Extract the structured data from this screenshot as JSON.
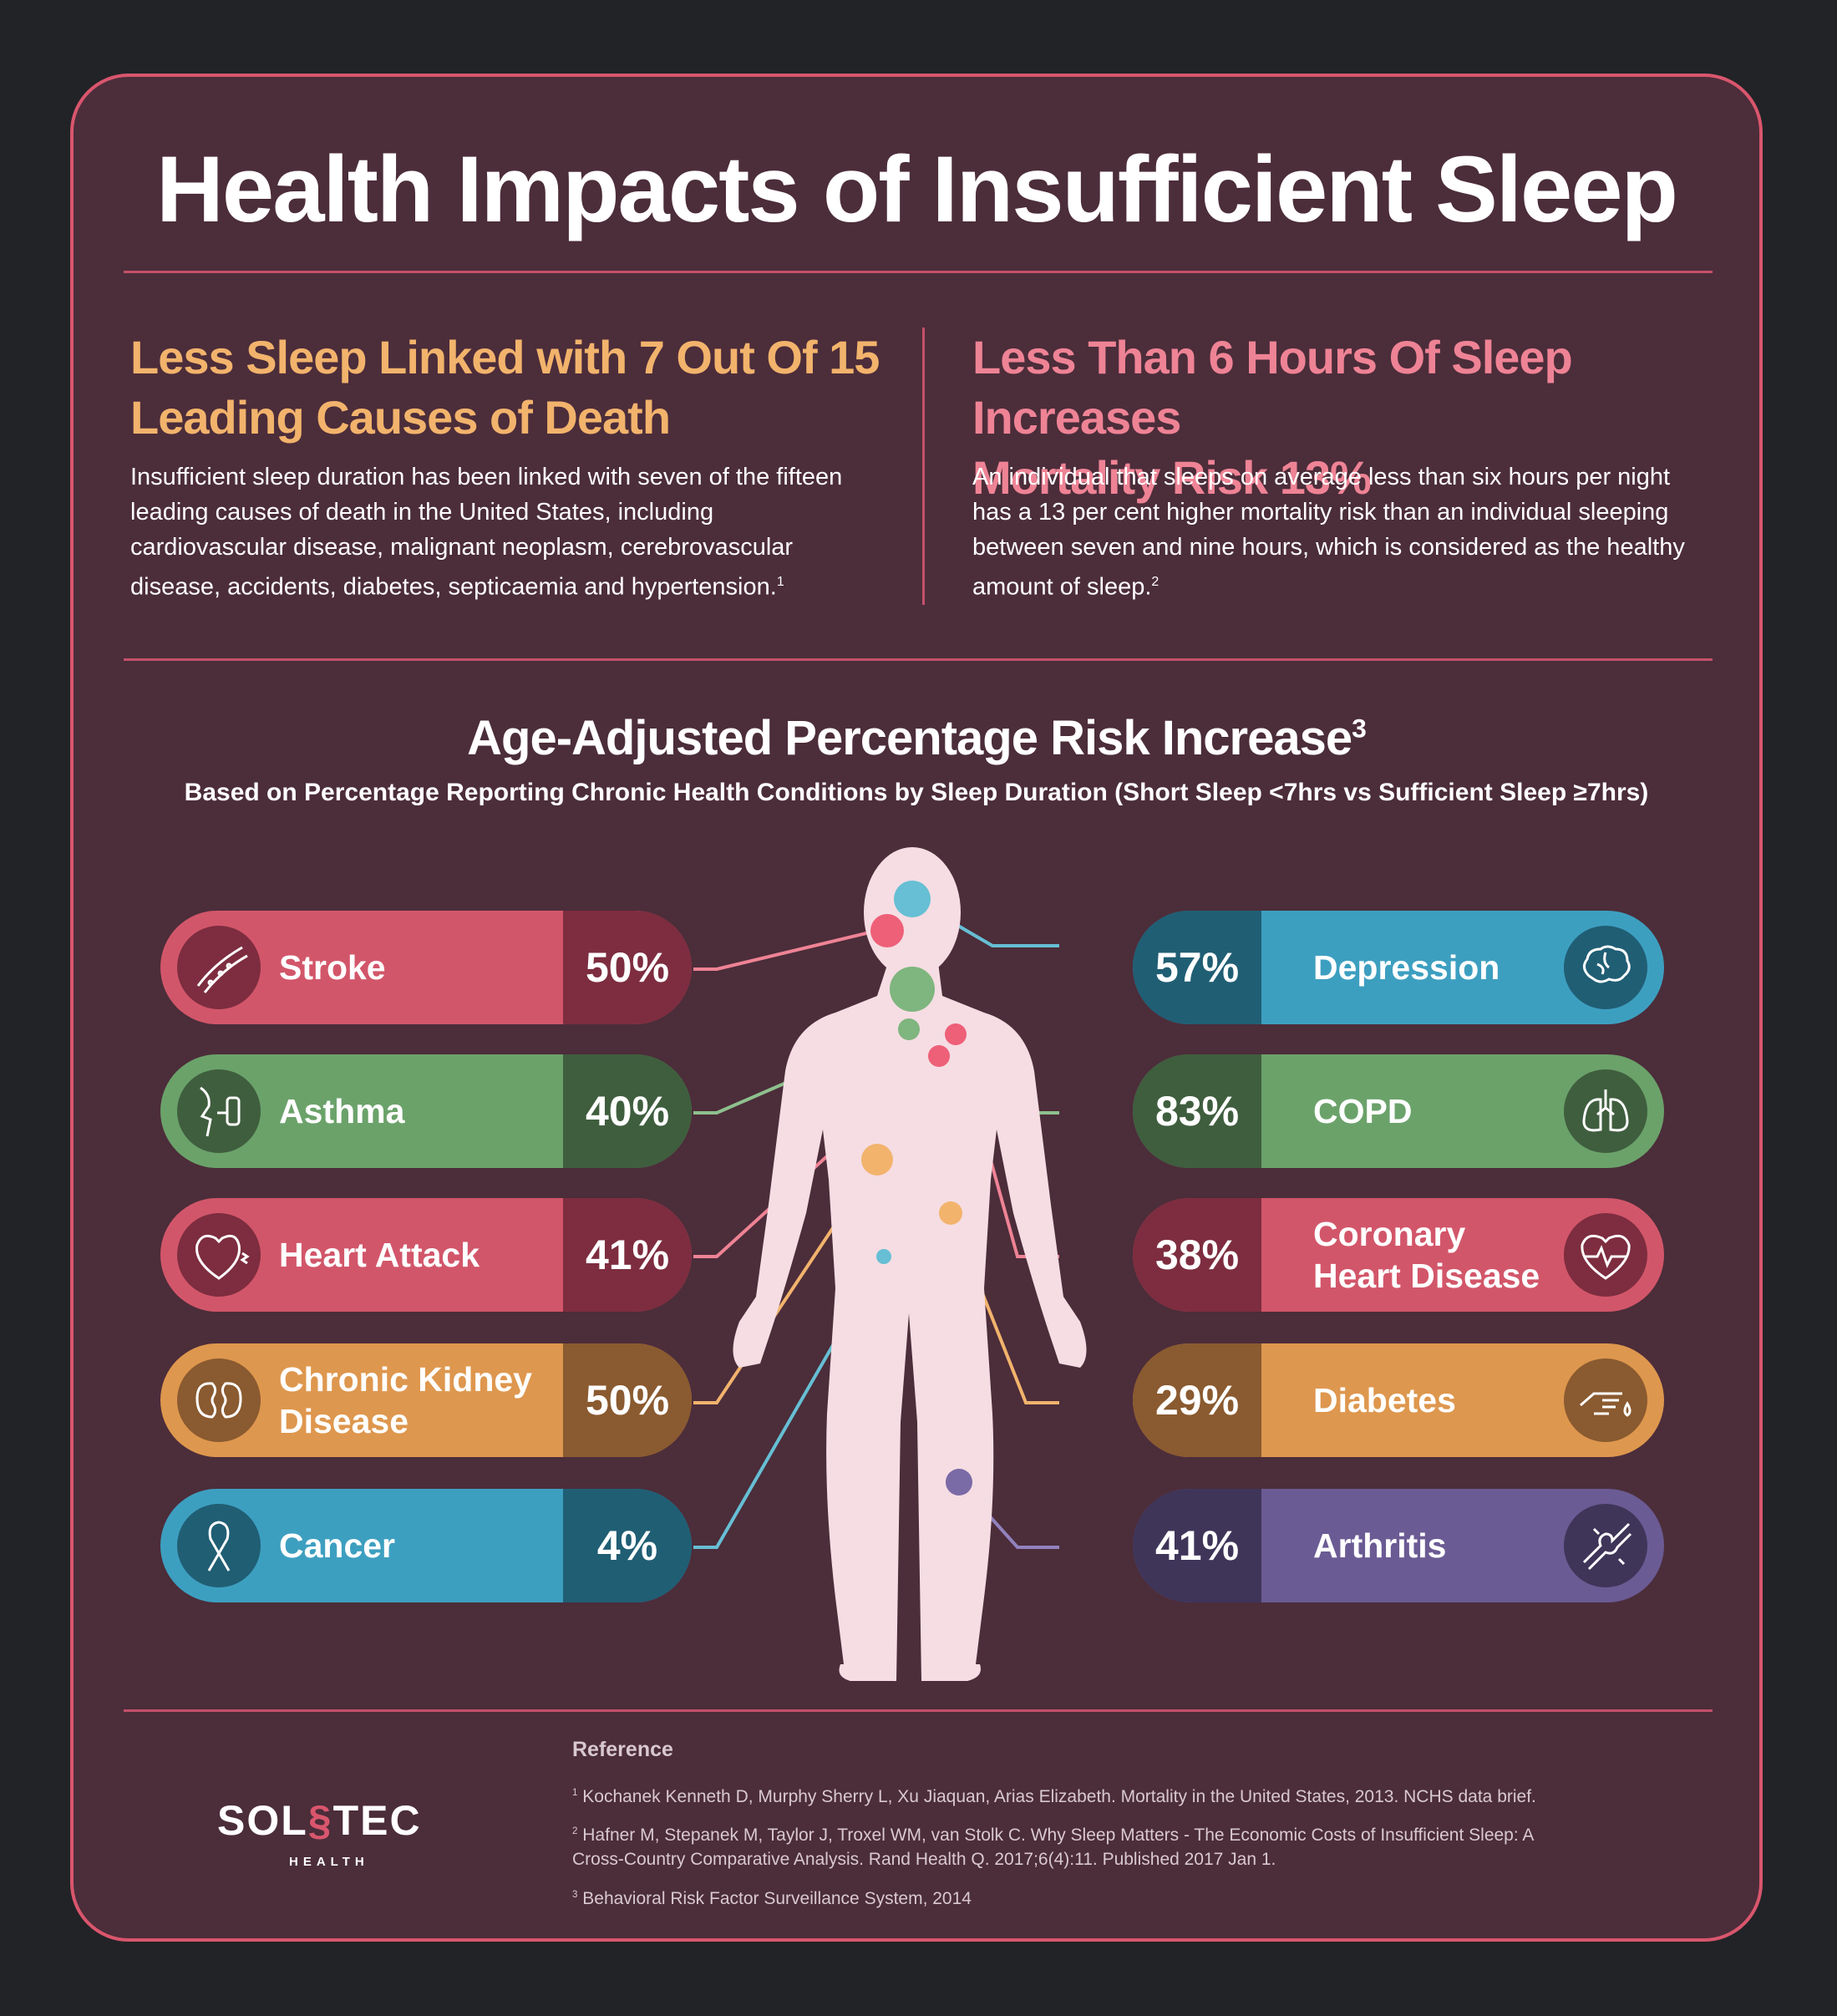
{
  "title": "Health Impacts of Insufficient Sleep",
  "left_col": {
    "heading": "Less Sleep Linked with 7 Out Of 15 Leading Causes of Death",
    "heading_line1": "Less Sleep Linked with 7 Out Of 15",
    "heading_line2": "Leading Causes of Death",
    "body": "Insufficient sleep duration has been linked with seven of the fifteen leading causes of death in the United States, including cardiovascular disease, malignant neoplasm, cerebrovascular disease, accidents, diabetes, septicaemia and hypertension.",
    "ref_mark": "1",
    "color": "#f2b36c"
  },
  "right_col": {
    "heading": "Less Than 6 Hours Of Sleep Increases Mortality Risk 13%",
    "heading_line1": "Less Than 6 Hours Of Sleep Increases",
    "heading_line2": "Mortality Risk 13%",
    "body": "An individual that sleeps on average less than six hours per night has a 13 per cent higher mortality risk than an individual sleeping between seven and nine hours, which is considered as the healthy amount of sleep.",
    "ref_mark": "2",
    "color": "#ee8395"
  },
  "section": {
    "title": "Age-Adjusted Percentage Risk Increase",
    "ref_mark": "3",
    "subtitle": "Based on Percentage Reporting Chronic Health Conditions by Sleep Duration (Short Sleep <7hrs vs Sufficient Sleep ≥7hrs)"
  },
  "left_conditions": [
    {
      "name": "Stroke",
      "value": "50%",
      "color": "#d2566a",
      "dark": "#7d2d3f",
      "icon": "blood-vessel-icon"
    },
    {
      "name": "Asthma",
      "value": "40%",
      "color": "#6ba26a",
      "dark": "#3f5e3e",
      "icon": "inhaler-icon"
    },
    {
      "name": "Heart Attack",
      "value": "41%",
      "color": "#d2566a",
      "dark": "#7d2d3f",
      "icon": "heart-icon"
    },
    {
      "name": "Chronic Kidney Disease",
      "value": "50%",
      "color": "#de974e",
      "dark": "#8a5a30",
      "icon": "kidney-icon"
    },
    {
      "name": "Cancer",
      "value": "4%",
      "color": "#3d9fc0",
      "dark": "#205e74",
      "icon": "ribbon-icon"
    }
  ],
  "right_conditions": [
    {
      "name": "Depression",
      "value": "57%",
      "color": "#3d9fc0",
      "dark": "#205e74",
      "icon": "brain-icon"
    },
    {
      "name": "COPD",
      "value": "83%",
      "color": "#6ba26a",
      "dark": "#3f5e3e",
      "icon": "lungs-icon"
    },
    {
      "name": "Coronary Heart Disease",
      "value": "38%",
      "color": "#d2566a",
      "dark": "#7d2d3f",
      "icon": "heartbeat-icon"
    },
    {
      "name": "Diabetes",
      "value": "29%",
      "color": "#de974e",
      "dark": "#8a5a30",
      "icon": "finger-drop-icon"
    },
    {
      "name": "Arthritis",
      "value": "41%",
      "color": "#6b5b94",
      "dark": "#3f3559",
      "icon": "joint-icon"
    }
  ],
  "references": {
    "heading": "Reference",
    "items": [
      {
        "mark": "1",
        "text": "Kochanek Kenneth D, Murphy Sherry L, Xu Jiaquan, Arias Elizabeth. Mortality in the United States, 2013. NCHS data brief."
      },
      {
        "mark": "2",
        "text": "Hafner M, Stepanek M, Taylor J, Troxel WM, van Stolk C. Why Sleep Matters - The Economic Costs of Insufficient Sleep: A Cross-Country Comparative Analysis. Rand Health Q. 2017;6(4):11. Published 2017 Jan 1."
      },
      {
        "mark": "3",
        "text": "Behavioral Risk Factor Surveillance System, 2014"
      }
    ]
  },
  "logo": {
    "main_left": "SOL",
    "main_right": "TEC",
    "sub": "HEALTH"
  }
}
